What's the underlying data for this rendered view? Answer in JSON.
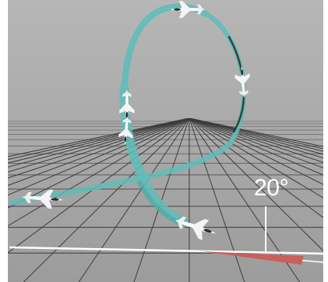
{
  "annotation": {
    "angle_label": "20°"
  },
  "colors": {
    "background": "#a8a8a8",
    "grid": "#3c3c3c",
    "flight_path": "#5fbdb9",
    "flight_path_shadow": "#2c2c2c",
    "angle_wedge": "#c9605c",
    "marker_line": "#ffffff"
  },
  "objects": {
    "aircraft_count": 6,
    "aircraft_icon": "jet-icon"
  }
}
